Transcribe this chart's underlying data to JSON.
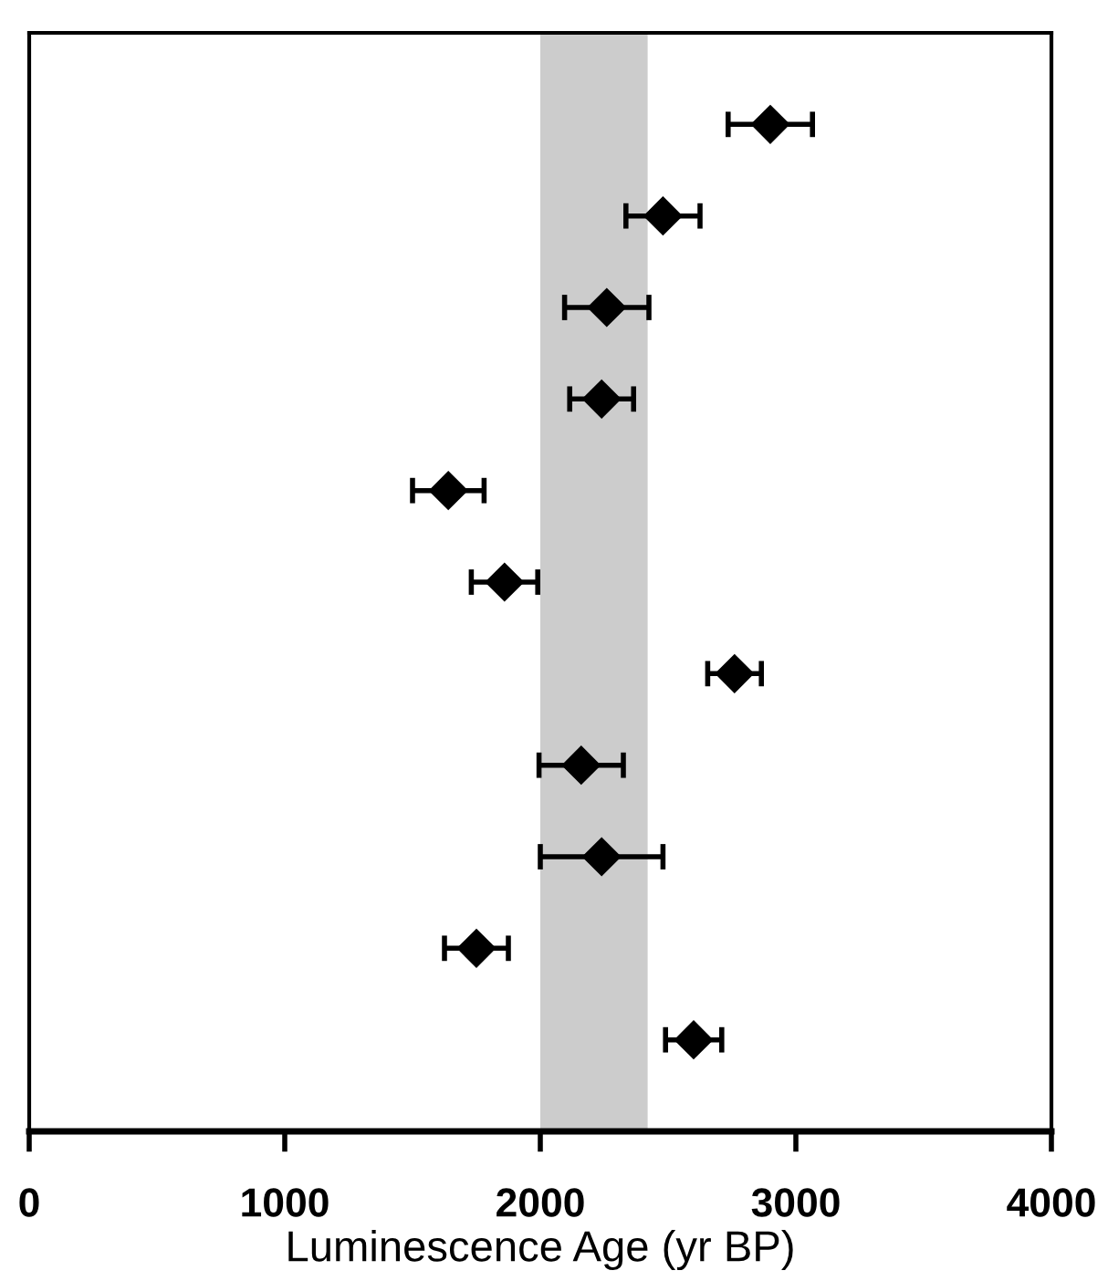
{
  "chart_data": {
    "type": "scatter",
    "orientation": "horizontal",
    "xlabel": "Luminescence Age (yr BP)",
    "categories": [
      null,
      null,
      null,
      null,
      null,
      null,
      null,
      null,
      null,
      null,
      null
    ],
    "values": [
      2900,
      2480,
      2260,
      2240,
      1640,
      1860,
      2760,
      2160,
      2240,
      1750,
      2600
    ],
    "errors": [
      165,
      145,
      165,
      125,
      140,
      130,
      105,
      165,
      240,
      125,
      110
    ],
    "color": "#000000",
    "marker": "diamond",
    "grid": false,
    "legend": false,
    "xlim": [
      0,
      4000
    ],
    "xticks": [
      0,
      1000,
      2000,
      3000,
      4000
    ],
    "bands": [
      {
        "axis": "x",
        "from": 2000,
        "to": 2420,
        "color": "#cccccc"
      }
    ]
  }
}
